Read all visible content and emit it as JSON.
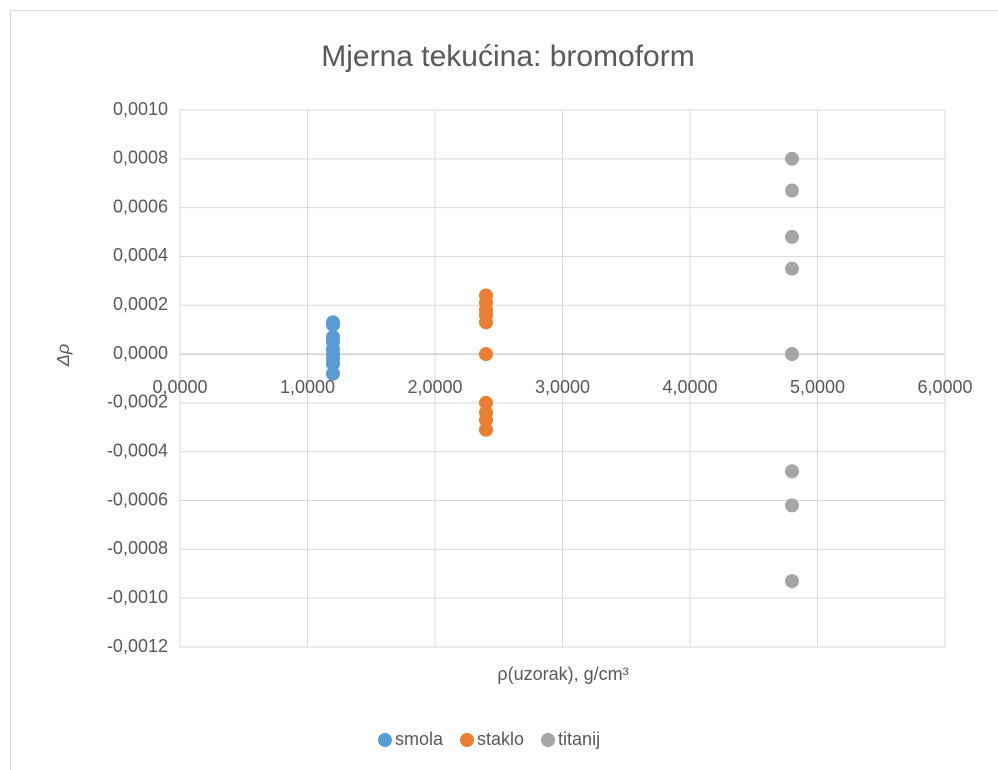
{
  "chart_data": {
    "type": "scatter",
    "title": "Mjerna tekućina: bromoform",
    "xlabel": "ρ(uzorak), g/cm³",
    "ylabel": "Δρ",
    "xlim": [
      0,
      6
    ],
    "xticks": [
      {
        "value": 0,
        "label": "0,0000"
      },
      {
        "value": 1,
        "label": "1,0000"
      },
      {
        "value": 2,
        "label": "2,0000"
      },
      {
        "value": 3,
        "label": "3,0000"
      },
      {
        "value": 4,
        "label": "4,0000"
      },
      {
        "value": 5,
        "label": "5,0000"
      },
      {
        "value": 6,
        "label": "6,0000"
      }
    ],
    "ylim": [
      -0.0012,
      0.001
    ],
    "yticks": [
      {
        "value": 0.001,
        "label": "0,0010"
      },
      {
        "value": 0.0008,
        "label": "0,0008"
      },
      {
        "value": 0.0006,
        "label": "0,0006"
      },
      {
        "value": 0.0004,
        "label": "0,0004"
      },
      {
        "value": 0.0002,
        "label": "0,0002"
      },
      {
        "value": 0,
        "label": "0,0000"
      },
      {
        "value": -0.0002,
        "label": "-0,0002"
      },
      {
        "value": -0.0004,
        "label": "-0,0004"
      },
      {
        "value": -0.0006,
        "label": "-0,0006"
      },
      {
        "value": -0.0008,
        "label": "-0,0008"
      },
      {
        "value": -0.001,
        "label": "-0,0010"
      },
      {
        "value": -0.0012,
        "label": "-0,0012"
      }
    ],
    "grid": true,
    "legend": "bottom",
    "series": [
      {
        "name": "smola",
        "color": "#5b9bd5",
        "x": [
          1.2,
          1.2,
          1.2,
          1.2,
          1.2,
          1.2,
          1.2,
          1.2,
          1.2
        ],
        "values": [
          0.00013,
          0.00012,
          7e-05,
          5e-05,
          2e-05,
          0,
          -2e-05,
          -4e-05,
          -8e-05
        ]
      },
      {
        "name": "staklo",
        "color": "#ed7d31",
        "x": [
          2.4,
          2.4,
          2.4,
          2.4,
          2.4,
          2.4,
          2.4,
          2.4,
          2.4,
          2.4
        ],
        "values": [
          0.00024,
          0.00021,
          0.00018,
          0.00016,
          0.00013,
          0,
          -0.0002,
          -0.00024,
          -0.00027,
          -0.00031
        ]
      },
      {
        "name": "titanij",
        "color": "#a5a5a5",
        "x": [
          4.8,
          4.8,
          4.8,
          4.8,
          4.8,
          4.8,
          4.8,
          4.8
        ],
        "values": [
          0.0008,
          0.00067,
          0.00048,
          0.00035,
          0,
          -0.00048,
          -0.00062,
          -0.00093
        ]
      }
    ]
  }
}
